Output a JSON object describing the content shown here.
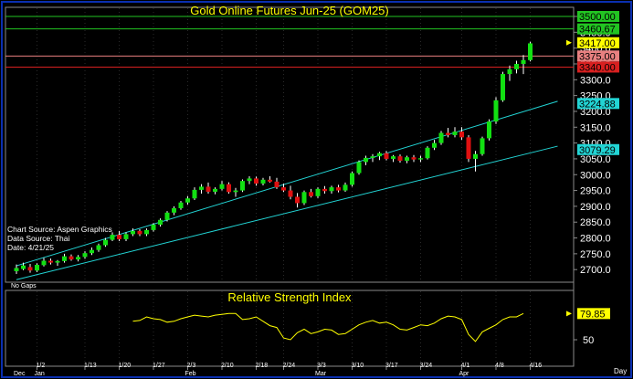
{
  "chart_data": [
    {
      "type": "candlestick",
      "title": "Gold Online Futures Jun-25 (GOM25)",
      "ylim": [
        2660,
        3515
      ],
      "y_ticks": [
        "3500.0",
        "3450.0",
        "3400.0",
        "3350.0",
        "3300.0",
        "3250.0",
        "3200.0",
        "3150.0",
        "3100.0",
        "3050.0",
        "3000.0",
        "2950.0",
        "2900.0",
        "2850.0",
        "2800.0",
        "2750.0",
        "2700.0"
      ],
      "y_tick_values": [
        3500,
        3450,
        3400,
        3350,
        3300,
        3250,
        3200,
        3150,
        3100,
        3050,
        3000,
        2950,
        2900,
        2850,
        2800,
        2750,
        2700
      ],
      "x_tick_labels": [
        "1/2",
        "1/13",
        "1/20",
        "1/27",
        "2/3",
        "2/10",
        "2/18",
        "2/24",
        "3/3",
        "3/10",
        "3/17",
        "3/24",
        "4/1",
        "4/8",
        "4/16"
      ],
      "x_tick_positions": [
        3,
        10,
        15,
        20,
        25,
        30,
        35,
        39,
        44,
        49,
        54,
        59,
        65,
        70,
        75
      ],
      "month_labels": [
        "Dec",
        "Jan",
        "Feb",
        "Mar",
        "Apr"
      ],
      "month_positions": [
        0,
        3,
        25,
        44,
        65
      ],
      "x_unit": "Day",
      "price_labels": [
        {
          "text": "3500.00",
          "value": 3500,
          "color": "#22c422"
        },
        {
          "text": "3460.67",
          "value": 3460.67,
          "color": "#22c422"
        },
        {
          "text": "3417.00",
          "value": 3417,
          "color": "#ffff00"
        },
        {
          "text": "3375.00",
          "value": 3375,
          "color": "#e88080"
        },
        {
          "text": "3340.00",
          "value": 3340,
          "color": "#d82020"
        },
        {
          "text": "3224.88",
          "value": 3224.88,
          "color": "#22d4d4"
        },
        {
          "text": "3079.29",
          "value": 3079.29,
          "color": "#22d4d4"
        }
      ],
      "hlines": [
        {
          "value": 3500,
          "color": "#22c422"
        },
        {
          "value": 3460.67,
          "color": "#22c422"
        },
        {
          "value": 3375,
          "color": "#e88080"
        },
        {
          "value": 3340,
          "color": "#d82020"
        }
      ],
      "channel_lines": [
        {
          "x0": 0,
          "y0": 2712,
          "x1": 79,
          "y1": 3232
        },
        {
          "x0": 0,
          "y0": 2668,
          "x1": 79,
          "y1": 3090
        }
      ],
      "notes": [
        "Chart Source: Aspen Graphics",
        "Data Source: Thai",
        "Date:   4/21/25"
      ],
      "corner_note": "No Gaps",
      "ohlc": [
        [
          2695,
          2716,
          2686,
          2705
        ],
        [
          2702,
          2722,
          2698,
          2713
        ],
        [
          2708,
          2718,
          2690,
          2697
        ],
        [
          2697,
          2720,
          2692,
          2715
        ],
        [
          2714,
          2737,
          2710,
          2728
        ],
        [
          2728,
          2735,
          2716,
          2722
        ],
        [
          2722,
          2730,
          2712,
          2727
        ],
        [
          2727,
          2750,
          2722,
          2742
        ],
        [
          2742,
          2748,
          2728,
          2732
        ],
        [
          2732,
          2746,
          2726,
          2740
        ],
        [
          2740,
          2758,
          2734,
          2752
        ],
        [
          2752,
          2770,
          2746,
          2762
        ],
        [
          2762,
          2782,
          2756,
          2777
        ],
        [
          2777,
          2800,
          2772,
          2794
        ],
        [
          2794,
          2818,
          2790,
          2810
        ],
        [
          2810,
          2822,
          2790,
          2796
        ],
        [
          2796,
          2818,
          2790,
          2812
        ],
        [
          2812,
          2830,
          2806,
          2822
        ],
        [
          2822,
          2828,
          2806,
          2812
        ],
        [
          2812,
          2830,
          2806,
          2825
        ],
        [
          2825,
          2847,
          2820,
          2842
        ],
        [
          2842,
          2862,
          2836,
          2857
        ],
        [
          2857,
          2885,
          2852,
          2880
        ],
        [
          2880,
          2900,
          2872,
          2894
        ],
        [
          2894,
          2917,
          2889,
          2912
        ],
        [
          2912,
          2932,
          2905,
          2925
        ],
        [
          2925,
          2960,
          2920,
          2952
        ],
        [
          2952,
          2970,
          2940,
          2962
        ],
        [
          2962,
          2975,
          2940,
          2946
        ],
        [
          2946,
          2960,
          2938,
          2955
        ],
        [
          2955,
          2980,
          2950,
          2970
        ],
        [
          2970,
          2976,
          2940,
          2945
        ],
        [
          2945,
          2958,
          2930,
          2950
        ],
        [
          2950,
          2985,
          2945,
          2980
        ],
        [
          2980,
          2995,
          2970,
          2988
        ],
        [
          2988,
          2994,
          2965,
          2972
        ],
        [
          2972,
          2990,
          2966,
          2984
        ],
        [
          2984,
          2995,
          2975,
          2978
        ],
        [
          2978,
          2990,
          2955,
          2960
        ],
        [
          2960,
          2972,
          2945,
          2950
        ],
        [
          2950,
          2965,
          2922,
          2930
        ],
        [
          2930,
          2942,
          2896,
          2910
        ],
        [
          2910,
          2950,
          2904,
          2945
        ],
        [
          2945,
          2955,
          2928,
          2932
        ],
        [
          2932,
          2960,
          2926,
          2955
        ],
        [
          2955,
          2964,
          2940,
          2948
        ],
        [
          2948,
          2965,
          2940,
          2960
        ],
        [
          2960,
          2968,
          2944,
          2950
        ],
        [
          2950,
          2975,
          2946,
          2968
        ],
        [
          2968,
          3010,
          2962,
          3005
        ],
        [
          3005,
          3045,
          3000,
          3040
        ],
        [
          3040,
          3060,
          3030,
          3053
        ],
        [
          3053,
          3065,
          3040,
          3058
        ],
        [
          3058,
          3072,
          3046,
          3068
        ],
        [
          3068,
          3075,
          3045,
          3050
        ],
        [
          3050,
          3062,
          3040,
          3058
        ],
        [
          3058,
          3064,
          3038,
          3044
        ],
        [
          3044,
          3060,
          3036,
          3055
        ],
        [
          3055,
          3062,
          3040,
          3048
        ],
        [
          3048,
          3060,
          3040,
          3052
        ],
        [
          3052,
          3090,
          3048,
          3085
        ],
        [
          3085,
          3110,
          3078,
          3100
        ],
        [
          3100,
          3138,
          3094,
          3132
        ],
        [
          3132,
          3148,
          3118,
          3125
        ],
        [
          3125,
          3150,
          3118,
          3136
        ],
        [
          3136,
          3150,
          3110,
          3118
        ],
        [
          3118,
          3125,
          3040,
          3050
        ],
        [
          3050,
          3075,
          3010,
          3065
        ],
        [
          3065,
          3120,
          3060,
          3115
        ],
        [
          3115,
          3175,
          3108,
          3168
        ],
        [
          3168,
          3245,
          3160,
          3235
        ],
        [
          3235,
          3325,
          3230,
          3318
        ],
        [
          3318,
          3345,
          3296,
          3333
        ],
        [
          3333,
          3360,
          3320,
          3350
        ],
        [
          3350,
          3378,
          3318,
          3362
        ],
        [
          3362,
          3420,
          3358,
          3415
        ]
      ]
    },
    {
      "type": "line",
      "title": "Relative Strength Index",
      "ylabel_ticks": [
        "50"
      ],
      "ylim": [
        30,
        90
      ],
      "last_value_label": "79.85",
      "start_index": 17,
      "values": [
        71,
        72,
        76,
        74,
        73,
        70,
        71,
        74,
        76,
        78,
        77,
        76,
        78,
        79,
        80,
        80,
        73,
        74,
        76,
        71,
        66,
        64,
        52,
        50,
        58,
        62,
        57,
        59,
        62,
        61,
        56,
        57,
        62,
        67,
        70,
        72,
        69,
        70,
        67,
        62,
        61,
        64,
        67,
        66,
        69,
        74,
        77,
        76,
        73,
        56,
        48,
        59,
        63,
        67,
        73,
        76,
        76,
        79.85
      ]
    }
  ]
}
